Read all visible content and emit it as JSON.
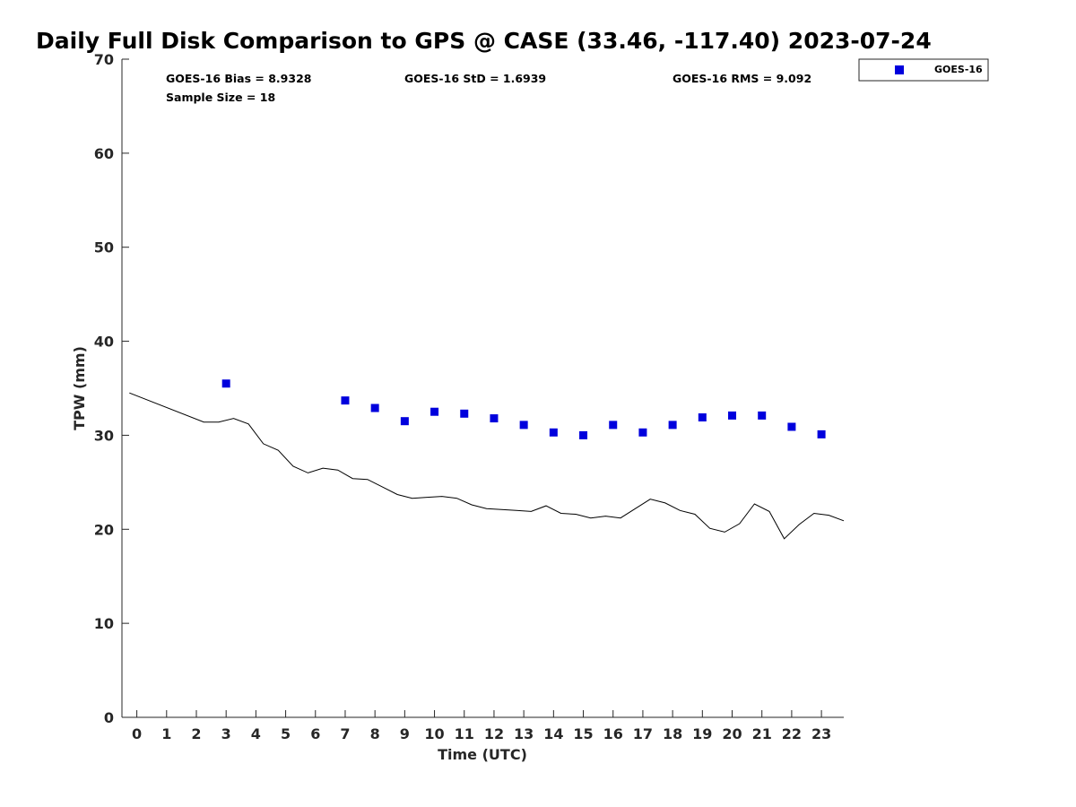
{
  "chart_data": {
    "type": "scatter",
    "title": "Daily Full Disk Comparison to GPS @ CASE (33.46, -117.40) 2023-07-24",
    "xlabel": "Time (UTC)",
    "ylabel": "TPW (mm)",
    "xlim": [
      -0.5,
      23.75
    ],
    "ylim": [
      0,
      70
    ],
    "xticks": [
      0,
      1,
      2,
      3,
      4,
      5,
      6,
      7,
      8,
      9,
      10,
      11,
      12,
      13,
      14,
      15,
      16,
      17,
      18,
      19,
      20,
      21,
      22,
      23
    ],
    "yticks": [
      0,
      10,
      20,
      30,
      40,
      50,
      60,
      70
    ],
    "grid": false,
    "legend_position": "top-right (outside plot)",
    "stats": {
      "bias": "GOES-16 Bias = 8.9328",
      "std": "GOES-16 StD = 1.6939",
      "rms": "GOES-16 RMS = 9.092",
      "sample": "Sample Size = 18"
    },
    "series": [
      {
        "name": "GOES-16",
        "kind": "scatter",
        "marker": "square",
        "color": "#0000dd",
        "points": [
          [
            3,
            35.5
          ],
          [
            7,
            33.7
          ],
          [
            8,
            32.9
          ],
          [
            9,
            31.5
          ],
          [
            10,
            32.5
          ],
          [
            11,
            32.3
          ],
          [
            12,
            31.8
          ],
          [
            13,
            31.1
          ],
          [
            14,
            30.3
          ],
          [
            15,
            30.0
          ],
          [
            16,
            31.1
          ],
          [
            17,
            30.3
          ],
          [
            18,
            31.1
          ],
          [
            19,
            31.9
          ],
          [
            20,
            32.1
          ],
          [
            21,
            32.1
          ],
          [
            22,
            30.9
          ],
          [
            23,
            30.1
          ]
        ]
      },
      {
        "kind": "line",
        "color": "#000000",
        "points": [
          [
            -0.25,
            34.5
          ],
          [
            2.25,
            31.4
          ],
          [
            2.75,
            31.4
          ],
          [
            3.25,
            31.8
          ],
          [
            3.75,
            31.2
          ],
          [
            4.25,
            29.1
          ],
          [
            4.75,
            28.4
          ],
          [
            5.25,
            26.7
          ],
          [
            5.75,
            26.0
          ],
          [
            6.25,
            26.5
          ],
          [
            6.75,
            26.3
          ],
          [
            7.25,
            25.4
          ],
          [
            7.75,
            25.3
          ],
          [
            8.25,
            24.5
          ],
          [
            8.75,
            23.7
          ],
          [
            9.25,
            23.3
          ],
          [
            9.75,
            23.4
          ],
          [
            10.25,
            23.5
          ],
          [
            10.75,
            23.3
          ],
          [
            11.25,
            22.6
          ],
          [
            11.75,
            22.2
          ],
          [
            12.25,
            22.1
          ],
          [
            12.75,
            22.0
          ],
          [
            13.25,
            21.9
          ],
          [
            13.75,
            22.5
          ],
          [
            14.25,
            21.7
          ],
          [
            14.75,
            21.6
          ],
          [
            15.25,
            21.2
          ],
          [
            15.75,
            21.4
          ],
          [
            16.25,
            21.2
          ],
          [
            16.75,
            22.2
          ],
          [
            17.25,
            23.2
          ],
          [
            17.75,
            22.8
          ],
          [
            18.25,
            22.0
          ],
          [
            18.75,
            21.6
          ],
          [
            19.25,
            20.1
          ],
          [
            19.75,
            19.7
          ],
          [
            20.25,
            20.6
          ],
          [
            20.75,
            22.7
          ],
          [
            21.25,
            21.9
          ],
          [
            21.75,
            19.0
          ],
          [
            22.25,
            20.5
          ],
          [
            22.75,
            21.7
          ],
          [
            23.25,
            21.5
          ],
          [
            23.75,
            20.9
          ]
        ]
      }
    ]
  }
}
